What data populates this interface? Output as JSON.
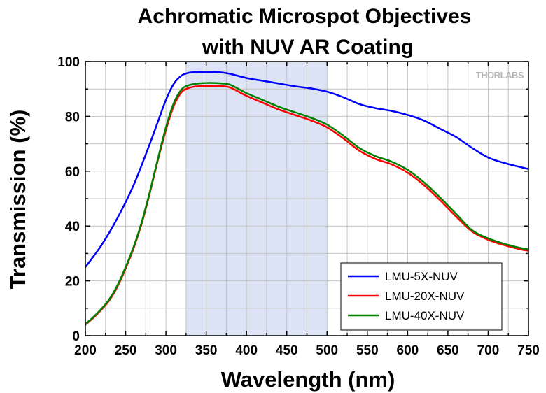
{
  "chart_data": {
    "type": "line",
    "title_line1": "Achromatic Microspot Objectives",
    "title_line2": "with NUV AR Coating",
    "xlabel": "Wavelength (nm)",
    "ylabel": "Transmission (%)",
    "xlim": [
      200,
      750
    ],
    "ylim": [
      0,
      100
    ],
    "xticks": [
      200,
      250,
      300,
      350,
      400,
      450,
      500,
      550,
      600,
      650,
      700,
      750
    ],
    "yticks": [
      0,
      20,
      40,
      60,
      80,
      100
    ],
    "grid": true,
    "legend_position": "bottom-right",
    "shaded_region": {
      "x_start": 325,
      "x_end": 500,
      "color": "#dbe3f5"
    },
    "watermark": "THORLABS",
    "series": [
      {
        "name": "LMU-5X-NUV",
        "color": "#0000ff",
        "x": [
          200,
          220,
          240,
          260,
          280,
          290,
          300,
          310,
          320,
          330,
          340,
          350,
          360,
          370,
          380,
          400,
          420,
          440,
          460,
          480,
          500,
          520,
          540,
          560,
          580,
          600,
          620,
          640,
          660,
          680,
          700,
          720,
          740,
          750
        ],
        "y": [
          25,
          33,
          43,
          55,
          70,
          78,
          86,
          92,
          95,
          96,
          96.2,
          96.2,
          96.2,
          96,
          95.5,
          94,
          93,
          92,
          91,
          90.2,
          89,
          87,
          84.5,
          83,
          82,
          80.5,
          78.5,
          75.5,
          72.5,
          68.5,
          65,
          63,
          61.5,
          60.8
        ]
      },
      {
        "name": "LMU-20X-NUV",
        "color": "#ff0000",
        "x": [
          200,
          210,
          220,
          230,
          240,
          250,
          260,
          270,
          280,
          290,
          300,
          310,
          320,
          330,
          340,
          350,
          360,
          370,
          380,
          400,
          420,
          440,
          460,
          480,
          500,
          520,
          540,
          560,
          580,
          600,
          620,
          640,
          660,
          680,
          700,
          720,
          740,
          750
        ],
        "y": [
          4,
          6.5,
          9.5,
          13,
          18,
          24.5,
          32,
          41,
          52,
          64,
          75,
          84,
          89,
          90.5,
          91,
          91,
          91,
          91,
          90.5,
          87.5,
          85,
          82.5,
          80.5,
          78.5,
          76,
          72,
          67.5,
          64.5,
          62.5,
          59.5,
          55,
          49.5,
          43.5,
          38,
          35,
          33,
          31.5,
          31
        ]
      },
      {
        "name": "LMU-40X-NUV",
        "color": "#008000",
        "x": [
          200,
          210,
          220,
          230,
          240,
          250,
          260,
          270,
          280,
          290,
          300,
          310,
          320,
          330,
          340,
          350,
          360,
          370,
          380,
          400,
          420,
          440,
          460,
          480,
          500,
          520,
          540,
          560,
          580,
          600,
          620,
          640,
          660,
          680,
          700,
          720,
          740,
          750
        ],
        "y": [
          4.2,
          6.8,
          9.8,
          13.4,
          18.5,
          25,
          32.5,
          41.5,
          52.5,
          64.5,
          76,
          85,
          90,
          91.5,
          92,
          92.2,
          92.2,
          92,
          91.5,
          88.5,
          86,
          83.5,
          81.5,
          79.5,
          77,
          73,
          68.5,
          65.5,
          63.5,
          60.5,
          56,
          50.5,
          44.5,
          38.5,
          35.5,
          33.5,
          32,
          31.5
        ]
      }
    ]
  }
}
